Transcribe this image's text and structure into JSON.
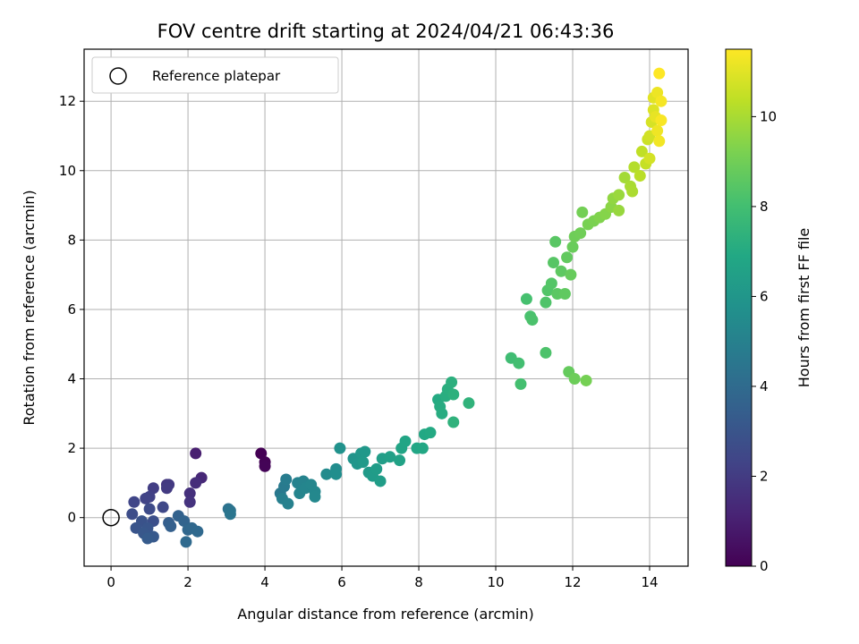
{
  "chart_data": {
    "type": "scatter",
    "title": "FOV centre drift starting at 2024/04/21 06:43:36",
    "xlabel": "Angular distance from reference (arcmin)",
    "ylabel": "Rotation from reference (arcmin)",
    "xlim": [
      -0.7,
      15.0
    ],
    "ylim": [
      -1.4,
      13.5
    ],
    "xticks": [
      0,
      2,
      4,
      6,
      8,
      10,
      12,
      14
    ],
    "yticks": [
      0,
      2,
      4,
      6,
      8,
      10,
      12
    ],
    "grid": true,
    "legend": {
      "position": "top-left",
      "entries": [
        "Reference platepar"
      ]
    },
    "reference_point": {
      "x": 0,
      "y": 0
    },
    "colorbar": {
      "label": "Hours from first FF file",
      "colormap": "viridis",
      "range": [
        0,
        11.5
      ],
      "ticks": [
        0,
        2,
        4,
        6,
        8,
        10
      ]
    },
    "points": [
      {
        "x": 3.9,
        "y": 1.85,
        "c": 0.0
      },
      {
        "x": 4.0,
        "y": 1.6,
        "c": 0.05
      },
      {
        "x": 4.0,
        "y": 1.48,
        "c": 0.1
      },
      {
        "x": 2.2,
        "y": 1.85,
        "c": 1.0
      },
      {
        "x": 2.35,
        "y": 1.15,
        "c": 1.3
      },
      {
        "x": 2.2,
        "y": 1.0,
        "c": 1.5
      },
      {
        "x": 2.05,
        "y": 0.7,
        "c": 1.6
      },
      {
        "x": 2.05,
        "y": 0.45,
        "c": 1.7
      },
      {
        "x": 1.45,
        "y": 0.95,
        "c": 1.8
      },
      {
        "x": 1.5,
        "y": 0.95,
        "c": 1.9
      },
      {
        "x": 1.45,
        "y": 0.85,
        "c": 2.0
      },
      {
        "x": 1.1,
        "y": 0.85,
        "c": 2.1
      },
      {
        "x": 1.0,
        "y": 0.6,
        "c": 2.2
      },
      {
        "x": 0.9,
        "y": 0.55,
        "c": 2.3
      },
      {
        "x": 0.6,
        "y": 0.45,
        "c": 2.4
      },
      {
        "x": 1.35,
        "y": 0.3,
        "c": 2.5
      },
      {
        "x": 1.0,
        "y": 0.25,
        "c": 2.6
      },
      {
        "x": 0.55,
        "y": 0.1,
        "c": 2.7
      },
      {
        "x": 1.1,
        "y": -0.1,
        "c": 2.8
      },
      {
        "x": 0.8,
        "y": -0.1,
        "c": 2.9
      },
      {
        "x": 0.65,
        "y": -0.3,
        "c": 3.0
      },
      {
        "x": 0.95,
        "y": -0.3,
        "c": 3.05
      },
      {
        "x": 0.85,
        "y": -0.45,
        "c": 3.1
      },
      {
        "x": 1.1,
        "y": -0.55,
        "c": 3.2
      },
      {
        "x": 0.95,
        "y": -0.6,
        "c": 3.3
      },
      {
        "x": 1.5,
        "y": -0.15,
        "c": 3.4
      },
      {
        "x": 1.55,
        "y": -0.25,
        "c": 3.5
      },
      {
        "x": 1.75,
        "y": 0.05,
        "c": 3.6
      },
      {
        "x": 1.9,
        "y": -0.1,
        "c": 3.7
      },
      {
        "x": 2.0,
        "y": -0.35,
        "c": 3.8
      },
      {
        "x": 2.1,
        "y": -0.3,
        "c": 3.85
      },
      {
        "x": 2.25,
        "y": -0.4,
        "c": 3.9
      },
      {
        "x": 1.95,
        "y": -0.7,
        "c": 3.95
      },
      {
        "x": 3.05,
        "y": 0.25,
        "c": 4.3
      },
      {
        "x": 3.1,
        "y": 0.2,
        "c": 4.4
      },
      {
        "x": 3.1,
        "y": 0.1,
        "c": 4.45
      },
      {
        "x": 4.4,
        "y": 0.7,
        "c": 4.6
      },
      {
        "x": 4.5,
        "y": 0.9,
        "c": 4.7
      },
      {
        "x": 4.55,
        "y": 1.1,
        "c": 4.8
      },
      {
        "x": 4.45,
        "y": 0.55,
        "c": 4.9
      },
      {
        "x": 4.6,
        "y": 0.4,
        "c": 5.0
      },
      {
        "x": 4.85,
        "y": 1.0,
        "c": 5.05
      },
      {
        "x": 5.0,
        "y": 1.05,
        "c": 5.1
      },
      {
        "x": 4.9,
        "y": 0.7,
        "c": 5.15
      },
      {
        "x": 5.05,
        "y": 0.85,
        "c": 5.2
      },
      {
        "x": 5.2,
        "y": 0.95,
        "c": 5.25
      },
      {
        "x": 5.3,
        "y": 0.75,
        "c": 5.3
      },
      {
        "x": 5.3,
        "y": 0.6,
        "c": 5.35
      },
      {
        "x": 5.6,
        "y": 1.25,
        "c": 5.5
      },
      {
        "x": 5.85,
        "y": 1.4,
        "c": 5.6
      },
      {
        "x": 5.85,
        "y": 1.25,
        "c": 5.65
      },
      {
        "x": 5.95,
        "y": 2.0,
        "c": 5.8
      },
      {
        "x": 6.3,
        "y": 1.7,
        "c": 5.9
      },
      {
        "x": 6.4,
        "y": 1.55,
        "c": 6.0
      },
      {
        "x": 6.5,
        "y": 1.85,
        "c": 6.05
      },
      {
        "x": 6.6,
        "y": 1.9,
        "c": 6.1
      },
      {
        "x": 6.55,
        "y": 1.6,
        "c": 6.15
      },
      {
        "x": 6.7,
        "y": 1.3,
        "c": 6.2
      },
      {
        "x": 6.8,
        "y": 1.2,
        "c": 6.25
      },
      {
        "x": 6.9,
        "y": 1.4,
        "c": 6.3
      },
      {
        "x": 7.0,
        "y": 1.05,
        "c": 6.35
      },
      {
        "x": 7.05,
        "y": 1.7,
        "c": 6.4
      },
      {
        "x": 7.25,
        "y": 1.75,
        "c": 6.5
      },
      {
        "x": 7.5,
        "y": 1.65,
        "c": 6.6
      },
      {
        "x": 7.55,
        "y": 2.0,
        "c": 6.7
      },
      {
        "x": 7.65,
        "y": 2.2,
        "c": 6.75
      },
      {
        "x": 7.95,
        "y": 2.0,
        "c": 6.8
      },
      {
        "x": 8.1,
        "y": 2.0,
        "c": 6.85
      },
      {
        "x": 8.15,
        "y": 2.4,
        "c": 6.9
      },
      {
        "x": 8.3,
        "y": 2.45,
        "c": 6.95
      },
      {
        "x": 8.5,
        "y": 3.4,
        "c": 7.0
      },
      {
        "x": 8.55,
        "y": 3.2,
        "c": 7.05
      },
      {
        "x": 8.6,
        "y": 3.0,
        "c": 7.1
      },
      {
        "x": 8.7,
        "y": 3.5,
        "c": 7.15
      },
      {
        "x": 8.75,
        "y": 3.7,
        "c": 7.2
      },
      {
        "x": 8.85,
        "y": 3.9,
        "c": 7.25
      },
      {
        "x": 8.9,
        "y": 3.55,
        "c": 7.3
      },
      {
        "x": 8.9,
        "y": 2.75,
        "c": 7.35
      },
      {
        "x": 9.3,
        "y": 3.3,
        "c": 7.4
      },
      {
        "x": 10.4,
        "y": 4.6,
        "c": 7.9
      },
      {
        "x": 10.6,
        "y": 4.45,
        "c": 8.0
      },
      {
        "x": 10.65,
        "y": 3.85,
        "c": 8.05
      },
      {
        "x": 10.8,
        "y": 6.3,
        "c": 8.1
      },
      {
        "x": 10.9,
        "y": 5.8,
        "c": 8.15
      },
      {
        "x": 10.95,
        "y": 5.7,
        "c": 8.2
      },
      {
        "x": 11.3,
        "y": 4.75,
        "c": 8.25
      },
      {
        "x": 11.3,
        "y": 6.2,
        "c": 8.3
      },
      {
        "x": 11.35,
        "y": 6.55,
        "c": 8.35
      },
      {
        "x": 11.45,
        "y": 6.75,
        "c": 8.4
      },
      {
        "x": 11.5,
        "y": 7.35,
        "c": 8.45
      },
      {
        "x": 11.55,
        "y": 7.95,
        "c": 8.5
      },
      {
        "x": 11.6,
        "y": 6.45,
        "c": 8.55
      },
      {
        "x": 11.7,
        "y": 7.1,
        "c": 8.6
      },
      {
        "x": 11.8,
        "y": 6.45,
        "c": 8.65
      },
      {
        "x": 11.85,
        "y": 7.5,
        "c": 8.7
      },
      {
        "x": 11.9,
        "y": 4.2,
        "c": 8.75
      },
      {
        "x": 11.95,
        "y": 7.0,
        "c": 8.8
      },
      {
        "x": 12.0,
        "y": 7.8,
        "c": 8.85
      },
      {
        "x": 12.05,
        "y": 4.0,
        "c": 8.9
      },
      {
        "x": 12.05,
        "y": 8.1,
        "c": 8.95
      },
      {
        "x": 12.2,
        "y": 8.2,
        "c": 9.0
      },
      {
        "x": 12.25,
        "y": 8.8,
        "c": 9.05
      },
      {
        "x": 12.35,
        "y": 3.95,
        "c": 9.1
      },
      {
        "x": 12.4,
        "y": 8.45,
        "c": 9.15
      },
      {
        "x": 12.55,
        "y": 8.55,
        "c": 9.2
      },
      {
        "x": 12.7,
        "y": 8.65,
        "c": 9.3
      },
      {
        "x": 12.85,
        "y": 8.75,
        "c": 9.4
      },
      {
        "x": 13.0,
        "y": 8.95,
        "c": 9.5
      },
      {
        "x": 13.05,
        "y": 9.2,
        "c": 9.6
      },
      {
        "x": 13.2,
        "y": 8.85,
        "c": 9.7
      },
      {
        "x": 13.2,
        "y": 9.3,
        "c": 9.75
      },
      {
        "x": 13.35,
        "y": 9.8,
        "c": 9.9
      },
      {
        "x": 13.5,
        "y": 9.55,
        "c": 10.0
      },
      {
        "x": 13.55,
        "y": 9.4,
        "c": 10.05
      },
      {
        "x": 13.6,
        "y": 10.1,
        "c": 10.2
      },
      {
        "x": 13.75,
        "y": 9.85,
        "c": 10.3
      },
      {
        "x": 13.8,
        "y": 10.55,
        "c": 10.4
      },
      {
        "x": 13.9,
        "y": 10.2,
        "c": 10.5
      },
      {
        "x": 13.95,
        "y": 10.9,
        "c": 10.6
      },
      {
        "x": 14.0,
        "y": 11.0,
        "c": 10.7
      },
      {
        "x": 14.0,
        "y": 10.35,
        "c": 10.75
      },
      {
        "x": 14.05,
        "y": 11.4,
        "c": 10.8
      },
      {
        "x": 14.1,
        "y": 11.75,
        "c": 10.9
      },
      {
        "x": 14.1,
        "y": 12.1,
        "c": 11.0
      },
      {
        "x": 14.15,
        "y": 11.55,
        "c": 11.1
      },
      {
        "x": 14.2,
        "y": 12.25,
        "c": 11.2
      },
      {
        "x": 14.2,
        "y": 11.15,
        "c": 11.25
      },
      {
        "x": 14.25,
        "y": 10.85,
        "c": 11.3
      },
      {
        "x": 14.3,
        "y": 12.0,
        "c": 11.35
      },
      {
        "x": 14.3,
        "y": 11.45,
        "c": 11.4
      },
      {
        "x": 14.25,
        "y": 12.8,
        "c": 11.5
      }
    ]
  }
}
